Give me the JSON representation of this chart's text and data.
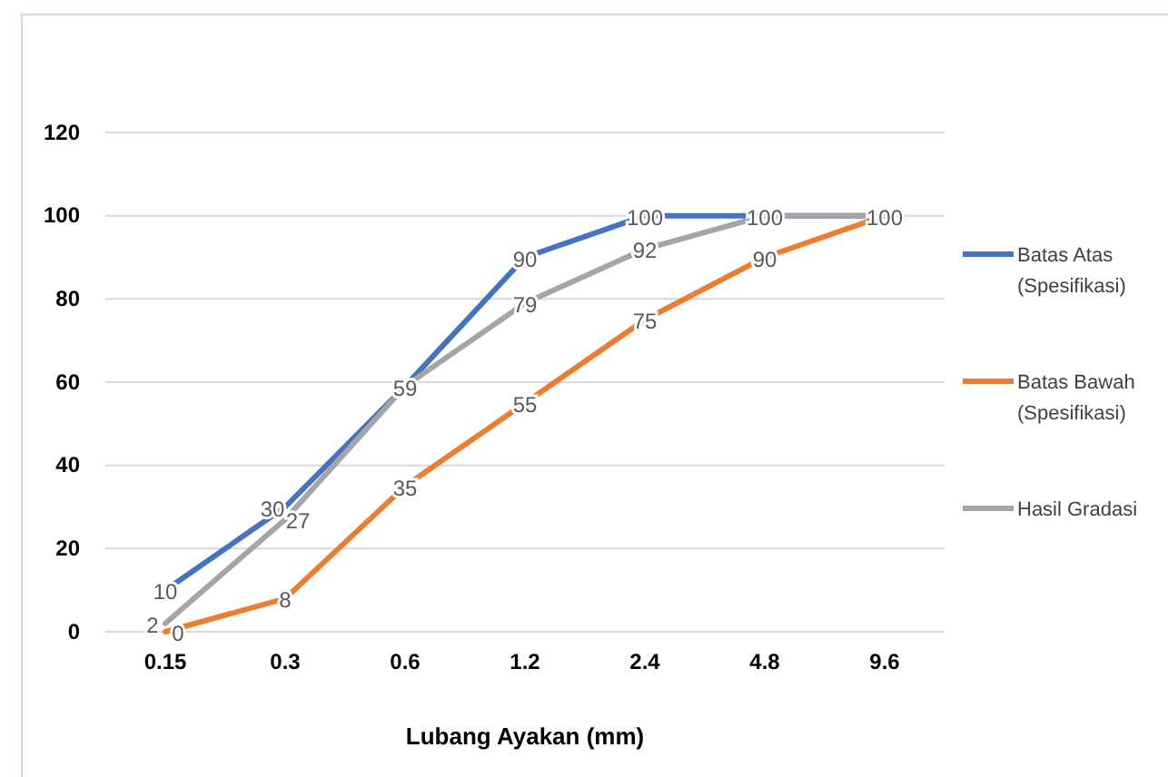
{
  "chart_data": {
    "type": "line",
    "xlabel": "Lubang Ayakan (mm)",
    "categories": [
      "0.15",
      "0.3",
      "0.6",
      "1.2",
      "2.4",
      "4.8",
      "9.6"
    ],
    "series": [
      {
        "name": "Batas Atas (Spesifikasi)",
        "color": "#4472c4",
        "values": [
          10,
          30,
          59,
          90,
          100,
          100,
          100
        ],
        "value_labels": [
          "10",
          "30",
          "59",
          "90",
          "100",
          "100",
          "100"
        ]
      },
      {
        "name": "Batas Bawah (Spesifikasi)",
        "color": "#ed7d31",
        "values": [
          0,
          8,
          35,
          55,
          75,
          90,
          100
        ],
        "value_labels": [
          "0",
          "8",
          "35",
          "55",
          "75",
          "90",
          null
        ]
      },
      {
        "name": "Hasil Gradasi",
        "color": "#a5a5a5",
        "values": [
          2,
          27,
          59,
          79,
          92,
          100,
          100
        ],
        "value_labels": [
          "2",
          "27",
          null,
          "79",
          "92",
          null,
          null
        ]
      }
    ],
    "ylim": [
      0,
      120
    ],
    "yticks": [
      0,
      20,
      40,
      60,
      80,
      100,
      120
    ],
    "grid": "y",
    "legend": "right",
    "marker": "none",
    "line_style": "solid"
  }
}
